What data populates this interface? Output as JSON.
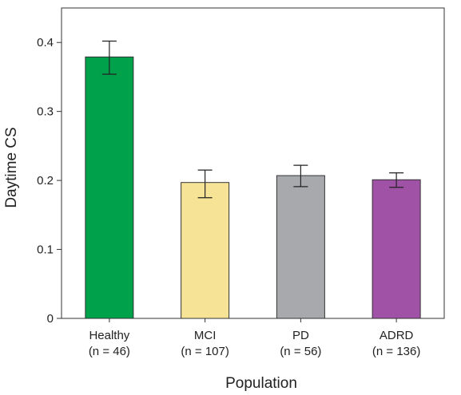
{
  "chart_data": {
    "type": "bar",
    "title": "",
    "xlabel": "Population",
    "ylabel": "Daytime CS",
    "ylim": [
      0,
      0.45
    ],
    "yticks": [
      "0",
      "0.1",
      "0.2",
      "0.3",
      "0.4"
    ],
    "grid": false,
    "legend": "none",
    "categories": [
      {
        "name": "Healthy",
        "n": "(n = 46)"
      },
      {
        "name": "MCI",
        "n": "(n = 107)"
      },
      {
        "name": "PD",
        "n": "(n = 56)"
      },
      {
        "name": "ADRD",
        "n": "(n = 136)"
      }
    ],
    "values": [
      0.379,
      0.197,
      0.207,
      0.201
    ],
    "error_low": [
      0.354,
      0.175,
      0.191,
      0.19
    ],
    "error_high": [
      0.402,
      0.215,
      0.222,
      0.211
    ],
    "colors": [
      "#00a14b",
      "#f7e395",
      "#a7a9ac",
      "#a052a6"
    ]
  }
}
